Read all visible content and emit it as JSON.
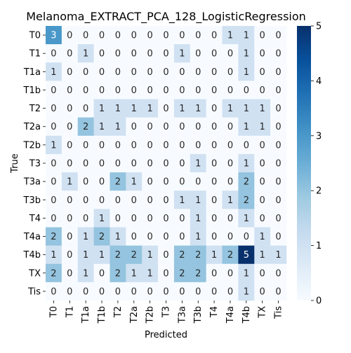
{
  "chart_data": {
    "type": "heatmap",
    "title": "Melanoma_EXTRACT_PCA_128_LogisticRegression",
    "xlabel": "Predicted",
    "ylabel": "True",
    "row_labels": [
      "T0",
      "T1",
      "T1a",
      "T1b",
      "T2",
      "T2a",
      "T2b",
      "T3",
      "T3a",
      "T3b",
      "T4",
      "T4a",
      "T4b",
      "TX",
      "Tis"
    ],
    "col_labels": [
      "T0",
      "T1",
      "T1a",
      "T1b",
      "T2",
      "T2a",
      "T2b",
      "T3",
      "T3a",
      "T3b",
      "T4",
      "T4a",
      "T4b",
      "TX",
      "Tis"
    ],
    "values": [
      [
        3,
        0,
        0,
        0,
        0,
        0,
        0,
        0,
        0,
        0,
        0,
        1,
        1,
        0,
        0
      ],
      [
        0,
        0,
        1,
        0,
        0,
        0,
        0,
        0,
        1,
        0,
        0,
        0,
        1,
        0,
        0
      ],
      [
        1,
        0,
        0,
        0,
        0,
        0,
        0,
        0,
        0,
        0,
        0,
        0,
        1,
        0,
        0
      ],
      [
        0,
        0,
        0,
        0,
        0,
        0,
        0,
        0,
        0,
        0,
        0,
        0,
        0,
        0,
        0
      ],
      [
        0,
        0,
        0,
        1,
        1,
        1,
        1,
        0,
        1,
        1,
        0,
        1,
        1,
        1,
        0
      ],
      [
        0,
        0,
        2,
        1,
        1,
        0,
        0,
        0,
        0,
        0,
        0,
        0,
        1,
        1,
        0
      ],
      [
        1,
        0,
        0,
        0,
        0,
        0,
        0,
        0,
        0,
        0,
        0,
        0,
        0,
        0,
        0
      ],
      [
        0,
        0,
        0,
        0,
        0,
        0,
        0,
        0,
        0,
        1,
        0,
        0,
        1,
        0,
        0
      ],
      [
        0,
        1,
        0,
        0,
        2,
        1,
        0,
        0,
        0,
        0,
        0,
        0,
        2,
        0,
        0
      ],
      [
        0,
        0,
        0,
        0,
        0,
        0,
        0,
        0,
        1,
        1,
        0,
        1,
        2,
        0,
        0
      ],
      [
        0,
        0,
        0,
        1,
        0,
        0,
        0,
        0,
        0,
        1,
        0,
        0,
        1,
        0,
        0
      ],
      [
        2,
        0,
        1,
        2,
        1,
        0,
        0,
        0,
        0,
        1,
        0,
        0,
        0,
        1,
        0
      ],
      [
        1,
        0,
        1,
        1,
        2,
        2,
        1,
        0,
        2,
        2,
        1,
        2,
        5,
        1,
        1
      ],
      [
        2,
        0,
        1,
        0,
        2,
        1,
        1,
        0,
        2,
        2,
        0,
        0,
        1,
        0,
        0
      ],
      [
        0,
        0,
        0,
        0,
        0,
        0,
        0,
        0,
        0,
        0,
        0,
        0,
        1,
        0,
        0
      ]
    ],
    "colorscale": "Blues",
    "vmin": 0,
    "vmax": 5,
    "colorbar_ticks": [
      0,
      1,
      2,
      3,
      4,
      5
    ],
    "colors": {
      "low": "#f7fbff",
      "high": "#08306b"
    }
  }
}
